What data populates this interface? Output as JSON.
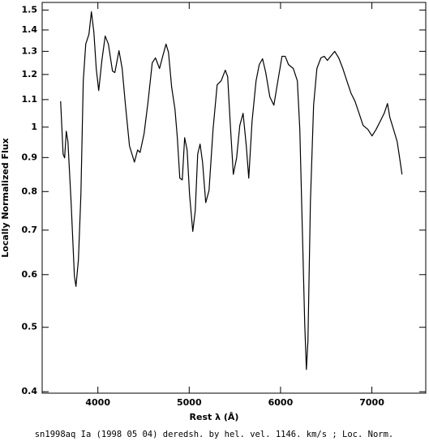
{
  "chart_data": {
    "type": "line",
    "xlabel": "Rest λ (Å)",
    "ylabel": "Locally Normalized Flux",
    "caption": "sn1998aq Ia (1998 05 04) deredsh. by hel. vel.  1146. km/s ;  Loc. Norm.",
    "xlim": [
      3390,
      7590
    ],
    "ylim": [
      0.398,
      1.54
    ],
    "yscale": "log",
    "xticks": [
      4000,
      5000,
      6000,
      7000
    ],
    "yticks": [
      0.4,
      0.5,
      0.6,
      0.7,
      0.8,
      0.9,
      1,
      1.1,
      1.2,
      1.3,
      1.4,
      1.5
    ],
    "color": "#000000",
    "x": [
      3592,
      3619,
      3636,
      3654,
      3672,
      3707,
      3743,
      3760,
      3787,
      3814,
      3840,
      3867,
      3902,
      3929,
      3956,
      3982,
      4009,
      4044,
      4080,
      4115,
      4160,
      4186,
      4231,
      4266,
      4302,
      4346,
      4400,
      4435,
      4462,
      4506,
      4550,
      4595,
      4630,
      4675,
      4710,
      4746,
      4773,
      4808,
      4844,
      4870,
      4897,
      4924,
      4950,
      4977,
      5004,
      5039,
      5066,
      5093,
      5119,
      5146,
      5181,
      5217,
      5261,
      5306,
      5350,
      5395,
      5421,
      5448,
      5483,
      5519,
      5554,
      5590,
      5625,
      5652,
      5688,
      5732,
      5767,
      5803,
      5838,
      5883,
      5927,
      5971,
      6016,
      6051,
      6087,
      6140,
      6184,
      6211,
      6238,
      6265,
      6283,
      6300,
      6327,
      6362,
      6398,
      6442,
      6478,
      6513,
      6549,
      6593,
      6637,
      6682,
      6726,
      6771,
      6815,
      6860,
      6904,
      6957,
      7002,
      7046,
      7091,
      7135,
      7171,
      7197,
      7224,
      7251,
      7277,
      7304,
      7330
    ],
    "values": [
      1.094,
      0.911,
      0.899,
      0.986,
      0.951,
      0.77,
      0.597,
      0.576,
      0.632,
      0.791,
      1.174,
      1.333,
      1.379,
      1.491,
      1.39,
      1.225,
      1.135,
      1.26,
      1.371,
      1.333,
      1.214,
      1.208,
      1.303,
      1.225,
      1.079,
      0.937,
      0.886,
      0.924,
      0.916,
      0.978,
      1.094,
      1.249,
      1.271,
      1.225,
      1.278,
      1.333,
      1.296,
      1.148,
      1.064,
      0.964,
      0.838,
      0.833,
      0.964,
      0.924,
      0.791,
      0.697,
      0.748,
      0.911,
      0.943,
      0.886,
      0.77,
      0.803,
      0.992,
      1.158,
      1.174,
      1.218,
      1.191,
      1.02,
      0.849,
      0.899,
      1.006,
      1.049,
      0.937,
      0.838,
      1.02,
      1.174,
      1.242,
      1.267,
      1.208,
      1.11,
      1.079,
      1.174,
      1.278,
      1.278,
      1.242,
      1.225,
      1.174,
      0.992,
      0.707,
      0.505,
      0.432,
      0.477,
      0.77,
      1.079,
      1.225,
      1.271,
      1.278,
      1.26,
      1.278,
      1.3,
      1.271,
      1.225,
      1.174,
      1.125,
      1.094,
      1.049,
      1.006,
      0.992,
      0.97,
      0.992,
      1.02,
      1.049,
      1.085,
      1.034,
      1.006,
      0.978,
      0.951,
      0.899,
      0.849
    ]
  }
}
